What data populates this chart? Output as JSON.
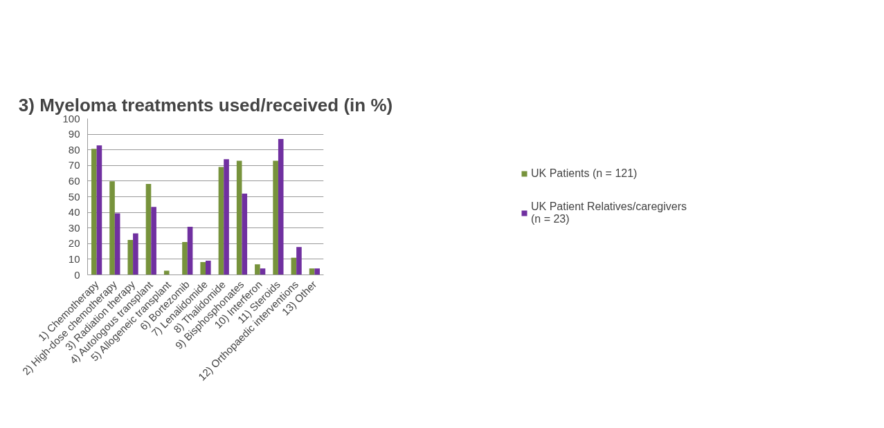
{
  "chart_data": {
    "type": "bar",
    "title": "3) Myeloma treatments used/received (in %)",
    "categories": [
      "1) Chemotherapy",
      "2) High-dose chemotherapy",
      "3) Radiation therapy",
      "4) Autologous transplant",
      "5) Allogeneic transplant",
      "6) Bortezomib",
      "7) Lenalidomide",
      "8) Thalidomide",
      "9) Bisphosphonates",
      "10) Interferon",
      "11) Steroids",
      "12) Orthopaedic interventions",
      "13) Other"
    ],
    "series": [
      {
        "name": "UK Patients (n = 121)",
        "color": "#77933c",
        "values": [
          80.6,
          59.8,
          22.4,
          58.2,
          2.7,
          21,
          8.2,
          69,
          73,
          6.8,
          73,
          11,
          4.1
        ]
      },
      {
        "name": "UK Patient Relatives/caregivers (n = 23)",
        "color": "#7030a0",
        "values": [
          82.9,
          39.4,
          26.6,
          43.5,
          0,
          30.7,
          9.1,
          74,
          52,
          4.1,
          87,
          17.8,
          4.1
        ]
      }
    ],
    "ylim": [
      0,
      100
    ],
    "yticks": [
      0,
      10,
      20,
      30,
      40,
      50,
      60,
      70,
      80,
      90,
      100
    ],
    "grid": "y",
    "legend": "right"
  }
}
